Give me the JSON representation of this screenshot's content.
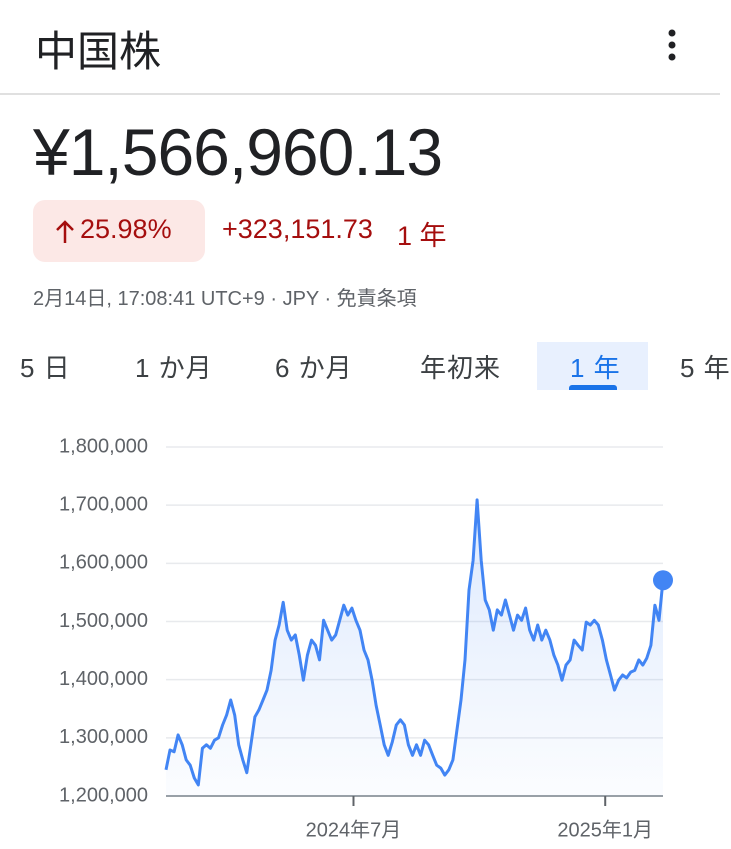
{
  "header": {
    "title": "中国株"
  },
  "quote": {
    "price": "¥1,566,960.13",
    "change_percent": "25.98%",
    "change": "+323,151.73",
    "period": "1 年",
    "meta": "2月14日, 17:08:41 UTC+9 · JPY · 免責条項"
  },
  "tabs": {
    "items": [
      "5 日",
      "1 か月",
      "6 か月",
      "年初来",
      "1 年",
      "5 年"
    ],
    "selected": 4
  },
  "chart_data": {
    "type": "line",
    "color": "#4285f4",
    "area": true,
    "grid": true,
    "values": [
      1245000,
      1279000,
      1276000,
      1305000,
      1288000,
      1262000,
      1253000,
      1231000,
      1219000,
      1282000,
      1288000,
      1282000,
      1296000,
      1300000,
      1322000,
      1339000,
      1365000,
      1339000,
      1288000,
      1262000,
      1240000,
      1288000,
      1336000,
      1348000,
      1365000,
      1382000,
      1416000,
      1468000,
      1494000,
      1533000,
      1485000,
      1468000,
      1477000,
      1442000,
      1399000,
      1442000,
      1468000,
      1459000,
      1434000,
      1502000,
      1485000,
      1468000,
      1477000,
      1502000,
      1528000,
      1511000,
      1523000,
      1502000,
      1485000,
      1451000,
      1434000,
      1399000,
      1356000,
      1322000,
      1288000,
      1270000,
      1293000,
      1322000,
      1331000,
      1322000,
      1288000,
      1270000,
      1288000,
      1270000,
      1296000,
      1288000,
      1270000,
      1253000,
      1248000,
      1236000,
      1245000,
      1262000,
      1313000,
      1365000,
      1434000,
      1554000,
      1605000,
      1709000,
      1605000,
      1537000,
      1520000,
      1485000,
      1520000,
      1511000,
      1537000,
      1511000,
      1485000,
      1511000,
      1502000,
      1523000,
      1485000,
      1468000,
      1494000,
      1468000,
      1485000,
      1468000,
      1442000,
      1425000,
      1399000,
      1425000,
      1434000,
      1468000,
      1459000,
      1451000,
      1499000,
      1494000,
      1502000,
      1494000,
      1468000,
      1434000,
      1408000,
      1382000,
      1399000,
      1408000,
      1403000,
      1413000,
      1416000,
      1434000,
      1425000,
      1437000,
      1459000,
      1528000,
      1502000,
      1571000
    ],
    "xlim": [
      0,
      123
    ],
    "xticks": [
      {
        "value": 46.4,
        "label": "2024年7月"
      },
      {
        "value": 108.7,
        "label": "2025年1月"
      }
    ],
    "ylim": [
      1200000,
      1800000
    ],
    "yticks": [
      {
        "value": 1200000,
        "label": "1,200,000"
      },
      {
        "value": 1300000,
        "label": "1,300,000"
      },
      {
        "value": 1400000,
        "label": "1,400,000"
      },
      {
        "value": 1500000,
        "label": "1,500,000"
      },
      {
        "value": 1600000,
        "label": "1,600,000"
      },
      {
        "value": 1700000,
        "label": "1,700,000"
      },
      {
        "value": 1800000,
        "label": "1,800,000"
      }
    ]
  }
}
